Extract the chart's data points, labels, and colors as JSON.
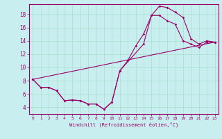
{
  "xlabel": "Windchill (Refroidissement éolien,°C)",
  "bg_color": "#c8eef0",
  "grid_color": "#aaddcc",
  "line_color": "#990066",
  "xlim": [
    -0.5,
    23.5
  ],
  "ylim": [
    3.0,
    19.5
  ],
  "yticks": [
    4,
    6,
    8,
    10,
    12,
    14,
    16,
    18
  ],
  "xticks": [
    0,
    1,
    2,
    3,
    4,
    5,
    6,
    7,
    8,
    9,
    10,
    11,
    12,
    13,
    14,
    15,
    16,
    17,
    18,
    19,
    20,
    21,
    22,
    23
  ],
  "curve1_x": [
    0,
    1,
    2,
    3,
    4,
    5,
    6,
    7,
    8,
    9,
    10,
    11,
    14,
    15,
    16,
    17,
    18,
    19,
    20,
    21,
    22,
    23
  ],
  "curve1_y": [
    8.2,
    7.0,
    7.0,
    6.5,
    5.0,
    5.1,
    5.0,
    4.5,
    4.5,
    3.7,
    4.8,
    9.5,
    13.5,
    17.8,
    19.2,
    19.0,
    18.3,
    17.5,
    14.3,
    13.5,
    14.0,
    13.8
  ],
  "curve2_x": [
    0,
    1,
    2,
    3,
    4,
    5,
    6,
    7,
    8,
    9,
    10,
    11,
    12,
    13,
    14,
    15,
    16,
    17,
    18,
    19,
    20,
    21,
    22,
    23
  ],
  "curve2_y": [
    8.2,
    7.0,
    7.0,
    6.5,
    5.0,
    5.1,
    5.0,
    4.5,
    4.5,
    3.7,
    4.8,
    9.5,
    11.0,
    13.2,
    15.0,
    17.8,
    17.8,
    17.0,
    16.5,
    14.0,
    13.5,
    13.0,
    13.8,
    13.8
  ],
  "curve3_x": [
    0,
    23
  ],
  "curve3_y": [
    8.2,
    13.8
  ]
}
